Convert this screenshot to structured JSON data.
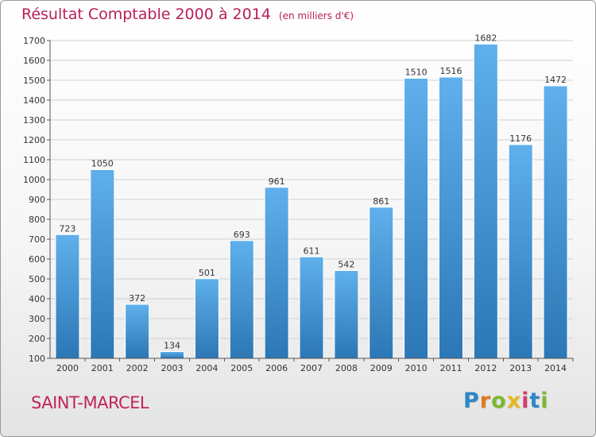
{
  "title": "Résultat Comptable 2000 à 2014",
  "unit": "(en milliers d'€)",
  "commune": "SAINT-MARCEL",
  "logo": [
    "P",
    "r",
    "o",
    "x",
    "i",
    "t",
    "i"
  ],
  "colors": {
    "title": "#b81e5a",
    "bar_light": "#5fb0ec",
    "bar_dark": "#2c77b5",
    "grid": "#d0d0d0"
  },
  "chart_data": {
    "type": "bar",
    "title": "Résultat Comptable 2000 à 2014",
    "subtitle": "(en milliers d'€)",
    "xlabel": "",
    "ylabel": "",
    "categories": [
      "2000",
      "2001",
      "2002",
      "2003",
      "2004",
      "2005",
      "2006",
      "2007",
      "2008",
      "2009",
      "2010",
      "2011",
      "2012",
      "2013",
      "2014"
    ],
    "values": [
      723,
      1050,
      372,
      134,
      501,
      693,
      961,
      611,
      542,
      861,
      1510,
      1516,
      1682,
      1176,
      1472
    ],
    "ylim": [
      100,
      1700
    ],
    "yticks": [
      100,
      200,
      300,
      400,
      500,
      600,
      700,
      800,
      900,
      1000,
      1100,
      1200,
      1300,
      1400,
      1500,
      1600,
      1700
    ],
    "grid": true,
    "data_labels": true
  }
}
